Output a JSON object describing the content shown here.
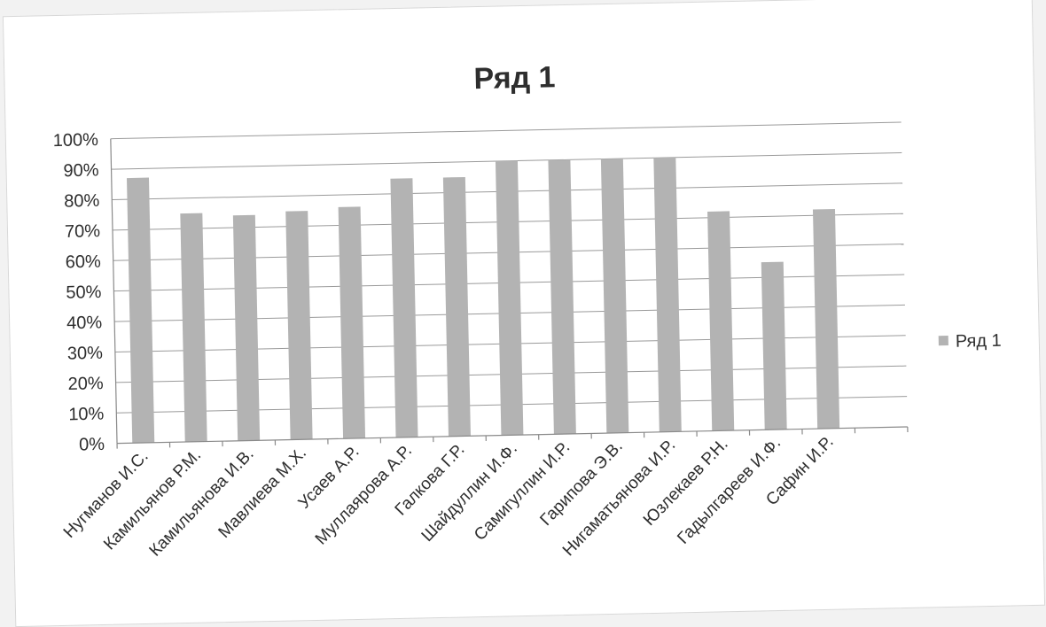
{
  "chart_data": {
    "type": "bar",
    "title": "Ряд 1",
    "xlabel": "",
    "ylabel": "",
    "ylim": [
      0,
      1
    ],
    "ytick_labels": [
      "0%",
      "10%",
      "20%",
      "30%",
      "40%",
      "50%",
      "60%",
      "70%",
      "80%",
      "90%",
      "100%"
    ],
    "grid": true,
    "legend_position": "right",
    "categories": [
      "Нугманов И.С.",
      "Камильянов Р.М.",
      "Камильянова И.В.",
      "Мавлиева М.Х.",
      "Усаев А.Р.",
      "Муллаярова А.Р.",
      "Галкова Г.Р.",
      "Шайдуллин И.Ф.",
      "Самигуллин И.Р.",
      "Гарипова Э.В.",
      "Нигаматьянова И.Р.",
      "Юзлекаев Р.Н.",
      "Гадылгареев И.Ф.",
      "Сафин И.Р."
    ],
    "series": [
      {
        "name": "Ряд 1",
        "color": "#b3b3b3",
        "values": [
          0.87,
          0.75,
          0.74,
          0.75,
          0.76,
          0.85,
          0.85,
          0.9,
          0.9,
          0.9,
          0.9,
          0.72,
          0.55,
          0.72
        ]
      }
    ]
  }
}
